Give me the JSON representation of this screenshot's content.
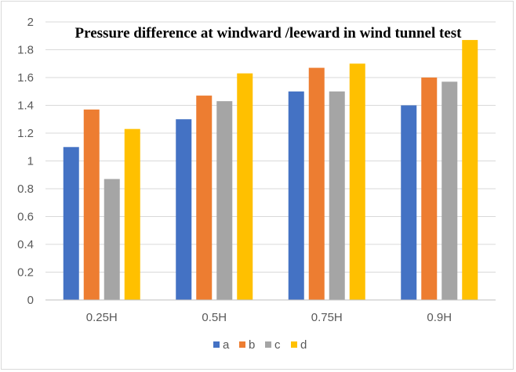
{
  "chart_data": {
    "type": "bar",
    "title": "Pressure difference at windward /leeward in wind tunnel test",
    "xlabel": "",
    "ylabel": "",
    "categories": [
      "0.25H",
      "0.5H",
      "0.75H",
      "0.9H"
    ],
    "series": [
      {
        "name": "a",
        "color": "#4472C4",
        "values": [
          1.1,
          1.3,
          1.5,
          1.4
        ]
      },
      {
        "name": "b",
        "color": "#ED7D31",
        "values": [
          1.37,
          1.47,
          1.67,
          1.6
        ]
      },
      {
        "name": "c",
        "color": "#A5A5A5",
        "values": [
          0.87,
          1.43,
          1.5,
          1.57
        ]
      },
      {
        "name": "d",
        "color": "#FFC000",
        "values": [
          1.23,
          1.63,
          1.7,
          1.87
        ]
      }
    ],
    "ylim": [
      0,
      2
    ],
    "yticks": [
      "0",
      "0.2",
      "0.4",
      "0.6",
      "0.8",
      "1",
      "1.2",
      "1.4",
      "1.6",
      "1.8",
      "2"
    ],
    "grid": true,
    "legend_position": "bottom"
  }
}
